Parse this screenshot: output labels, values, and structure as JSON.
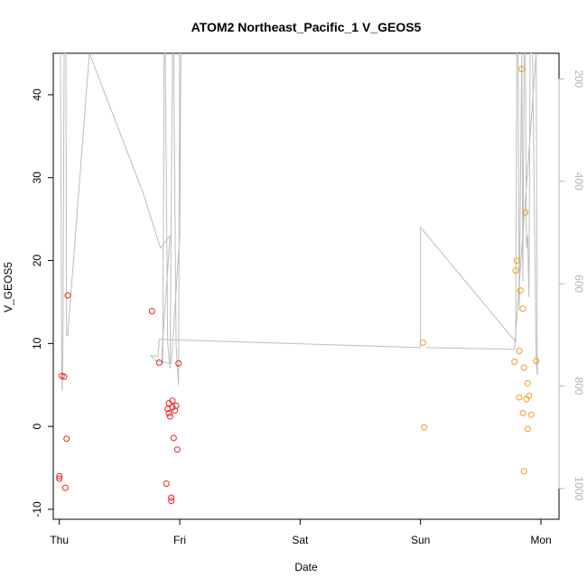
{
  "chart_data": {
    "type": "scatter",
    "title": "ATOM2 Northeast_Pacific_1 V_GEOS5",
    "xlabel": "Date",
    "ylabel": "V_GEOS5",
    "x_ticks": [
      {
        "label": "Thu",
        "day": 0
      },
      {
        "label": "Fri",
        "day": 1
      },
      {
        "label": "Sat",
        "day": 2
      },
      {
        "label": "Sun",
        "day": 3
      },
      {
        "label": "Mon",
        "day": 4
      }
    ],
    "xlim": [
      -0.05,
      4.15
    ],
    "ylim": [
      -11.2,
      45
    ],
    "y_ticks": [
      -10,
      0,
      10,
      20,
      30,
      40
    ],
    "y2_ticks": [
      200,
      400,
      600,
      800,
      1000
    ],
    "y2lim": [
      1060,
      150
    ],
    "grid": false,
    "series": [
      {
        "color": "#e8251f",
        "points": [
          [
            0.0,
            -6.0
          ],
          [
            0.0,
            -6.3
          ],
          [
            0.02,
            6.1
          ],
          [
            0.04,
            6.0
          ],
          [
            0.05,
            -7.4
          ],
          [
            0.06,
            -1.5
          ],
          [
            0.07,
            15.8
          ],
          [
            0.77,
            13.9
          ],
          [
            0.83,
            7.7
          ],
          [
            0.89,
            -6.9
          ],
          [
            0.9,
            2.1
          ],
          [
            0.91,
            2.8
          ],
          [
            0.91,
            1.6
          ],
          [
            0.92,
            1.2
          ],
          [
            0.93,
            -9.0
          ],
          [
            0.93,
            -8.6
          ],
          [
            0.94,
            3.1
          ],
          [
            0.94,
            2.3
          ],
          [
            0.95,
            -1.4
          ],
          [
            0.96,
            1.9
          ],
          [
            0.97,
            2.5
          ],
          [
            0.98,
            -2.8
          ],
          [
            0.99,
            7.6
          ]
        ]
      },
      {
        "color": "#f59c1a",
        "points": [
          [
            3.02,
            10.1
          ],
          [
            3.03,
            -0.1
          ],
          [
            3.78,
            7.8
          ],
          [
            3.79,
            18.8
          ],
          [
            3.8,
            20.0
          ],
          [
            3.82,
            9.1
          ],
          [
            3.82,
            3.5
          ],
          [
            3.83,
            16.4
          ],
          [
            3.84,
            43.1
          ],
          [
            3.85,
            14.2
          ],
          [
            3.85,
            1.6
          ],
          [
            3.86,
            -5.4
          ],
          [
            3.86,
            7.1
          ],
          [
            3.87,
            25.8
          ],
          [
            3.88,
            3.3
          ],
          [
            3.89,
            5.2
          ],
          [
            3.89,
            -0.3
          ],
          [
            3.9,
            3.7
          ],
          [
            3.92,
            1.4
          ],
          [
            3.96,
            7.9
          ]
        ]
      }
    ],
    "altitude_track": [
      [
        0.01,
        45
      ],
      [
        0.02,
        7.0
      ],
      [
        0.025,
        4.3
      ],
      [
        0.03,
        10.5
      ],
      [
        0.04,
        45
      ],
      [
        0.055,
        45
      ],
      [
        0.06,
        10.9
      ],
      [
        0.07,
        11.0
      ],
      [
        0.25,
        45
      ],
      [
        0.7,
        28.0
      ],
      [
        0.84,
        21.5
      ],
      [
        0.92,
        23.0
      ],
      [
        0.85,
        8.5
      ],
      [
        0.86,
        7.5
      ],
      [
        0.87,
        45
      ],
      [
        0.88,
        45
      ],
      [
        0.9,
        10.0
      ],
      [
        0.92,
        7.0
      ],
      [
        0.94,
        45
      ],
      [
        0.95,
        45
      ],
      [
        0.97,
        10.0
      ],
      [
        0.99,
        5.0
      ],
      [
        1.0,
        45
      ],
      [
        1.01,
        45
      ],
      [
        1.0,
        23.0
      ],
      [
        0.93,
        7.6
      ],
      [
        0.8,
        7.9
      ],
      [
        0.76,
        8.5
      ],
      [
        0.82,
        8.5
      ],
      [
        0.83,
        10.5
      ],
      [
        3.0,
        9.5
      ],
      [
        3.0,
        24.0
      ],
      [
        3.79,
        10.2
      ],
      [
        3.8,
        45
      ],
      [
        3.81,
        45
      ],
      [
        3.82,
        14.0
      ],
      [
        3.84,
        45
      ],
      [
        3.85,
        17.5
      ],
      [
        3.86,
        45
      ],
      [
        3.87,
        45
      ],
      [
        3.88,
        21.5
      ],
      [
        3.89,
        23.0
      ],
      [
        3.9,
        15.6
      ],
      [
        3.91,
        45
      ],
      [
        3.93,
        45
      ],
      [
        3.96,
        8.0
      ],
      [
        3.97,
        6.2
      ],
      [
        3.96,
        45
      ],
      [
        3.78,
        9.3
      ],
      [
        3.05,
        9.5
      ]
    ]
  }
}
